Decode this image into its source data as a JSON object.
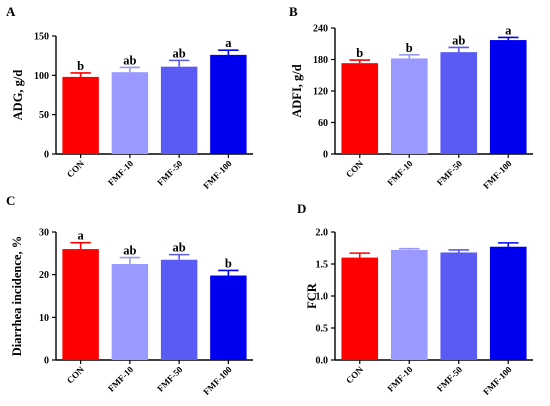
{
  "chart_data": [
    {
      "type": "bar",
      "panel": "A",
      "categories": [
        "CON",
        "FMF-10",
        "FMF-50",
        "FMF-100"
      ],
      "values": [
        98,
        104,
        111,
        126
      ],
      "errors": [
        5,
        6,
        8,
        6
      ],
      "significance": [
        "b",
        "ab",
        "ab",
        "a"
      ],
      "ylabel": "ADG, g/d",
      "ylim": [
        0,
        150
      ],
      "yticks": [
        0,
        50,
        100,
        150
      ],
      "grid": false
    },
    {
      "type": "bar",
      "panel": "B",
      "categories": [
        "CON",
        "FMF-10",
        "FMF-50",
        "FMF-100"
      ],
      "values": [
        173,
        182,
        194,
        217
      ],
      "errors": [
        6,
        7,
        9,
        5
      ],
      "significance": [
        "b",
        "b",
        "ab",
        "a"
      ],
      "ylabel": "ADFI, g/d",
      "ylim": [
        0,
        240
      ],
      "yticks": [
        0,
        60,
        120,
        180,
        240
      ],
      "grid": false
    },
    {
      "type": "bar",
      "panel": "C",
      "categories": [
        "CON",
        "FMF-10",
        "FMF-50",
        "FMF-100"
      ],
      "values": [
        26,
        22.5,
        23.5,
        19.8
      ],
      "errors": [
        1.5,
        1.5,
        1.2,
        1.2
      ],
      "significance": [
        "a",
        "ab",
        "ab",
        "b"
      ],
      "ylabel": "Diarrhea incidence, %",
      "ylim": [
        0,
        30
      ],
      "yticks": [
        0,
        10,
        20,
        30
      ],
      "grid": false
    },
    {
      "type": "bar",
      "panel": "D",
      "categories": [
        "CON",
        "FMF-10",
        "FMF-50",
        "FMF-100"
      ],
      "values": [
        1.6,
        1.72,
        1.68,
        1.77
      ],
      "errors": [
        0.07,
        0.02,
        0.04,
        0.06
      ],
      "significance": [
        "",
        "",
        "",
        ""
      ],
      "ylabel": "FCR",
      "ylim": [
        0,
        2.0
      ],
      "yticks": [
        "0.0",
        "0.5",
        "1.0",
        "1.5",
        "2.0"
      ],
      "grid": false
    }
  ],
  "colors": [
    "#ff0000",
    "#9999ff",
    "#5a5af5",
    "#0000f0"
  ]
}
